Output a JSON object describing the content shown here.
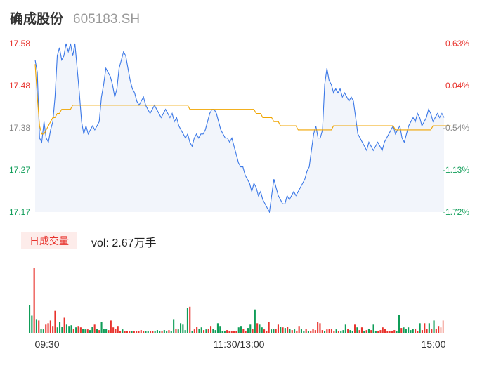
{
  "header": {
    "name": "确成股份",
    "code": "605183.SH"
  },
  "volume": {
    "tab_label": "日成交量",
    "readout": "vol: 2.67万手"
  },
  "colors": {
    "up": "#e8332d",
    "down": "#0f9d58",
    "neutral": "#888888",
    "price_line": "#3b78e7",
    "avg_line": "#f0a500",
    "area": "#f2f5fb"
  },
  "chart_data": {
    "type": "line",
    "y_ticks": [
      "17.58",
      "17.48",
      "17.38",
      "17.27",
      "17.17"
    ],
    "pct_ticks": [
      "0.63%",
      "0.04%",
      "-0.54%",
      "-1.13%",
      "-1.72%"
    ],
    "ylim": [
      17.17,
      17.58
    ],
    "x_tick_labels": [
      "09:30",
      "11:30/13:00",
      "15:00"
    ],
    "series": [
      {
        "kind": "price",
        "values": [
          17.54,
          17.51,
          17.35,
          17.34,
          17.39,
          17.35,
          17.34,
          17.37,
          17.39,
          17.45,
          17.55,
          17.57,
          17.54,
          17.55,
          17.58,
          17.56,
          17.58,
          17.55,
          17.58,
          17.52,
          17.46,
          17.39,
          17.36,
          17.38,
          17.36,
          17.37,
          17.38,
          17.37,
          17.38,
          17.39,
          17.45,
          17.48,
          17.52,
          17.51,
          17.5,
          17.48,
          17.45,
          17.47,
          17.52,
          17.54,
          17.56,
          17.55,
          17.52,
          17.49,
          17.47,
          17.46,
          17.44,
          17.43,
          17.44,
          17.45,
          17.43,
          17.42,
          17.41,
          17.42,
          17.43,
          17.42,
          17.41,
          17.4,
          17.41,
          17.42,
          17.41,
          17.4,
          17.41,
          17.39,
          17.4,
          17.38,
          17.37,
          17.36,
          17.35,
          17.36,
          17.34,
          17.33,
          17.35,
          17.36,
          17.35,
          17.36,
          17.36,
          17.37,
          17.39,
          17.41,
          17.42,
          17.42,
          17.41,
          17.39,
          17.37,
          17.36,
          17.35,
          17.35,
          17.34,
          17.35,
          17.33,
          17.31,
          17.29,
          17.28,
          17.28,
          17.26,
          17.25,
          17.24,
          17.22,
          17.24,
          17.23,
          17.21,
          17.22,
          17.2,
          17.19,
          17.18,
          17.17,
          17.21,
          17.25,
          17.23,
          17.21,
          17.2,
          17.19,
          17.19,
          17.21,
          17.2,
          17.21,
          17.22,
          17.21,
          17.22,
          17.23,
          17.24,
          17.25,
          17.27,
          17.28,
          17.32,
          17.36,
          17.38,
          17.35,
          17.35,
          17.37,
          17.48,
          17.52,
          17.49,
          17.48,
          17.46,
          17.47,
          17.46,
          17.47,
          17.45,
          17.46,
          17.45,
          17.44,
          17.45,
          17.44,
          17.4,
          17.36,
          17.35,
          17.34,
          17.33,
          17.32,
          17.34,
          17.33,
          17.32,
          17.33,
          17.34,
          17.33,
          17.32,
          17.34,
          17.35,
          17.36,
          17.37,
          17.38,
          17.36,
          17.37,
          17.38,
          17.35,
          17.34,
          17.36,
          17.38,
          17.39,
          17.4,
          17.39,
          17.41,
          17.4,
          17.38,
          17.39,
          17.4,
          17.42,
          17.41,
          17.39,
          17.4,
          17.41,
          17.4,
          17.41,
          17.4
        ]
      },
      {
        "kind": "average",
        "values": [
          17.53,
          17.45,
          17.38,
          17.36,
          17.36,
          17.37,
          17.38,
          17.39,
          17.4,
          17.4,
          17.41,
          17.41,
          17.42,
          17.42,
          17.42,
          17.42,
          17.42,
          17.43,
          17.43,
          17.43,
          17.43,
          17.43,
          17.43,
          17.43,
          17.43,
          17.43,
          17.43,
          17.43,
          17.43,
          17.43,
          17.43,
          17.43,
          17.43,
          17.43,
          17.43,
          17.43,
          17.43,
          17.43,
          17.43,
          17.43,
          17.43,
          17.43,
          17.43,
          17.43,
          17.43,
          17.43,
          17.43,
          17.43,
          17.43,
          17.43,
          17.43,
          17.43,
          17.43,
          17.43,
          17.43,
          17.43,
          17.43,
          17.43,
          17.43,
          17.43,
          17.43,
          17.43,
          17.43,
          17.43,
          17.43,
          17.43,
          17.43,
          17.43,
          17.43,
          17.43,
          17.42,
          17.42,
          17.42,
          17.42,
          17.42,
          17.42,
          17.42,
          17.42,
          17.42,
          17.42,
          17.42,
          17.42,
          17.42,
          17.42,
          17.42,
          17.42,
          17.42,
          17.42,
          17.42,
          17.42,
          17.42,
          17.42,
          17.42,
          17.42,
          17.42,
          17.42,
          17.42,
          17.42,
          17.42,
          17.42,
          17.41,
          17.41,
          17.41,
          17.4,
          17.4,
          17.4,
          17.4,
          17.4,
          17.39,
          17.39,
          17.39,
          17.38,
          17.38,
          17.38,
          17.38,
          17.38,
          17.38,
          17.38,
          17.38,
          17.37,
          17.37,
          17.37,
          17.37,
          17.37,
          17.37,
          17.37,
          17.37,
          17.37,
          17.37,
          17.37,
          17.37,
          17.37,
          17.37,
          17.37,
          17.37,
          17.38,
          17.38,
          17.38,
          17.38,
          17.38,
          17.38,
          17.38,
          17.38,
          17.38,
          17.38,
          17.38,
          17.38,
          17.38,
          17.38,
          17.38,
          17.38,
          17.38,
          17.38,
          17.38,
          17.38,
          17.38,
          17.38,
          17.38,
          17.38,
          17.38,
          17.38,
          17.38,
          17.38,
          17.37,
          17.37,
          17.37,
          17.37,
          17.37,
          17.37,
          17.37,
          17.37,
          17.37,
          17.37,
          17.37,
          17.37,
          17.37,
          17.37,
          17.37,
          17.37,
          17.37,
          17.38,
          17.38,
          17.38,
          17.38,
          17.38,
          17.38,
          17.38,
          17.38,
          17.38
        ]
      }
    ],
    "volume_bars": [
      [
        40,
        "down"
      ],
      [
        25,
        "down"
      ],
      [
        95,
        "up"
      ],
      [
        20,
        "down"
      ],
      [
        18,
        "up"
      ],
      [
        6,
        "down"
      ],
      [
        5,
        "down"
      ],
      [
        12,
        "up"
      ],
      [
        14,
        "up"
      ],
      [
        18,
        "up"
      ],
      [
        10,
        "up"
      ],
      [
        32,
        "up"
      ],
      [
        8,
        "down"
      ],
      [
        16,
        "down"
      ],
      [
        9,
        "down"
      ],
      [
        22,
        "up"
      ],
      [
        12,
        "down"
      ],
      [
        10,
        "down"
      ],
      [
        11,
        "down"
      ],
      [
        6,
        "up"
      ],
      [
        8,
        "down"
      ],
      [
        10,
        "up"
      ],
      [
        8,
        "up"
      ],
      [
        6,
        "down"
      ],
      [
        5,
        "down"
      ],
      [
        5,
        "up"
      ],
      [
        4,
        "down"
      ],
      [
        9,
        "down"
      ],
      [
        12,
        "up"
      ],
      [
        6,
        "down"
      ],
      [
        4,
        "up"
      ],
      [
        16,
        "down"
      ],
      [
        6,
        "down"
      ],
      [
        6,
        "down"
      ],
      [
        4,
        "up"
      ],
      [
        18,
        "up"
      ],
      [
        8,
        "up"
      ],
      [
        6,
        "up"
      ],
      [
        10,
        "up"
      ],
      [
        3,
        "up"
      ],
      [
        5,
        "down"
      ],
      [
        2,
        "up"
      ],
      [
        2,
        "up"
      ],
      [
        3,
        "up"
      ],
      [
        3,
        "down"
      ],
      [
        2,
        "up"
      ],
      [
        2,
        "up"
      ],
      [
        2,
        "up"
      ],
      [
        4,
        "up"
      ],
      [
        2,
        "up"
      ],
      [
        3,
        "down"
      ],
      [
        2,
        "down"
      ],
      [
        3,
        "up"
      ],
      [
        3,
        "up"
      ],
      [
        2,
        "down"
      ],
      [
        4,
        "down"
      ],
      [
        2,
        "down"
      ],
      [
        2,
        "up"
      ],
      [
        4,
        "down"
      ],
      [
        2,
        "down"
      ],
      [
        4,
        "up"
      ],
      [
        2,
        "down"
      ],
      [
        20,
        "down"
      ],
      [
        6,
        "up"
      ],
      [
        5,
        "down"
      ],
      [
        14,
        "down"
      ],
      [
        12,
        "down"
      ],
      [
        4,
        "down"
      ],
      [
        36,
        "down"
      ],
      [
        38,
        "up"
      ],
      [
        3,
        "down"
      ],
      [
        5,
        "up"
      ],
      [
        9,
        "up"
      ],
      [
        6,
        "down"
      ],
      [
        8,
        "down"
      ],
      [
        4,
        "up"
      ],
      [
        5,
        "down"
      ],
      [
        6,
        "up"
      ],
      [
        10,
        "up"
      ],
      [
        6,
        "down"
      ],
      [
        4,
        "down"
      ],
      [
        14,
        "down"
      ],
      [
        10,
        "down"
      ],
      [
        2,
        "down"
      ],
      [
        3,
        "down"
      ],
      [
        4,
        "up"
      ],
      [
        2,
        "up"
      ],
      [
        2,
        "up"
      ],
      [
        3,
        "up"
      ],
      [
        2,
        "up"
      ],
      [
        8,
        "down"
      ],
      [
        10,
        "down"
      ],
      [
        6,
        "up"
      ],
      [
        3,
        "up"
      ],
      [
        7,
        "down"
      ],
      [
        12,
        "down"
      ],
      [
        6,
        "up"
      ],
      [
        34,
        "down"
      ],
      [
        14,
        "up"
      ],
      [
        12,
        "down"
      ],
      [
        8,
        "down"
      ],
      [
        5,
        "up"
      ],
      [
        2,
        "up"
      ],
      [
        16,
        "up"
      ],
      [
        5,
        "down"
      ],
      [
        6,
        "down"
      ],
      [
        6,
        "up"
      ],
      [
        12,
        "up"
      ],
      [
        9,
        "down"
      ],
      [
        8,
        "up"
      ],
      [
        7,
        "down"
      ],
      [
        9,
        "up"
      ],
      [
        6,
        "down"
      ],
      [
        4,
        "up"
      ],
      [
        5,
        "down"
      ],
      [
        2,
        "up"
      ],
      [
        10,
        "up"
      ],
      [
        6,
        "down"
      ],
      [
        2,
        "down"
      ],
      [
        6,
        "up"
      ],
      [
        2,
        "down"
      ],
      [
        3,
        "up"
      ],
      [
        6,
        "up"
      ],
      [
        4,
        "up"
      ],
      [
        16,
        "up"
      ],
      [
        14,
        "up"
      ],
      [
        4,
        "up"
      ],
      [
        3,
        "down"
      ],
      [
        5,
        "up"
      ],
      [
        6,
        "up"
      ],
      [
        6,
        "up"
      ],
      [
        2,
        "up"
      ],
      [
        5,
        "down"
      ],
      [
        3,
        "up"
      ],
      [
        2,
        "down"
      ],
      [
        4,
        "down"
      ],
      [
        12,
        "down"
      ],
      [
        6,
        "up"
      ],
      [
        4,
        "down"
      ],
      [
        2,
        "down"
      ],
      [
        12,
        "up"
      ],
      [
        8,
        "down"
      ],
      [
        4,
        "up"
      ],
      [
        8,
        "up"
      ],
      [
        2,
        "down"
      ],
      [
        4,
        "up"
      ],
      [
        6,
        "down"
      ],
      [
        4,
        "up"
      ],
      [
        12,
        "down"
      ],
      [
        2,
        "down"
      ],
      [
        3,
        "up"
      ],
      [
        4,
        "up"
      ],
      [
        8,
        "up"
      ],
      [
        6,
        "up"
      ],
      [
        2,
        "up"
      ],
      [
        3,
        "up"
      ],
      [
        2,
        "up"
      ],
      [
        4,
        "up"
      ],
      [
        2,
        "down"
      ],
      [
        26,
        "down"
      ],
      [
        7,
        "up"
      ],
      [
        8,
        "down"
      ],
      [
        6,
        "down"
      ],
      [
        8,
        "down"
      ],
      [
        4,
        "down"
      ],
      [
        6,
        "down"
      ],
      [
        6,
        "up"
      ],
      [
        3,
        "up"
      ],
      [
        14,
        "down"
      ],
      [
        4,
        "up"
      ],
      [
        14,
        "up"
      ],
      [
        6,
        "up"
      ],
      [
        14,
        "down"
      ],
      [
        6,
        "up"
      ],
      [
        18,
        "down"
      ],
      [
        6,
        "up"
      ],
      [
        10,
        "up"
      ],
      [
        8,
        "neutral"
      ],
      [
        18,
        "neutral"
      ]
    ]
  }
}
